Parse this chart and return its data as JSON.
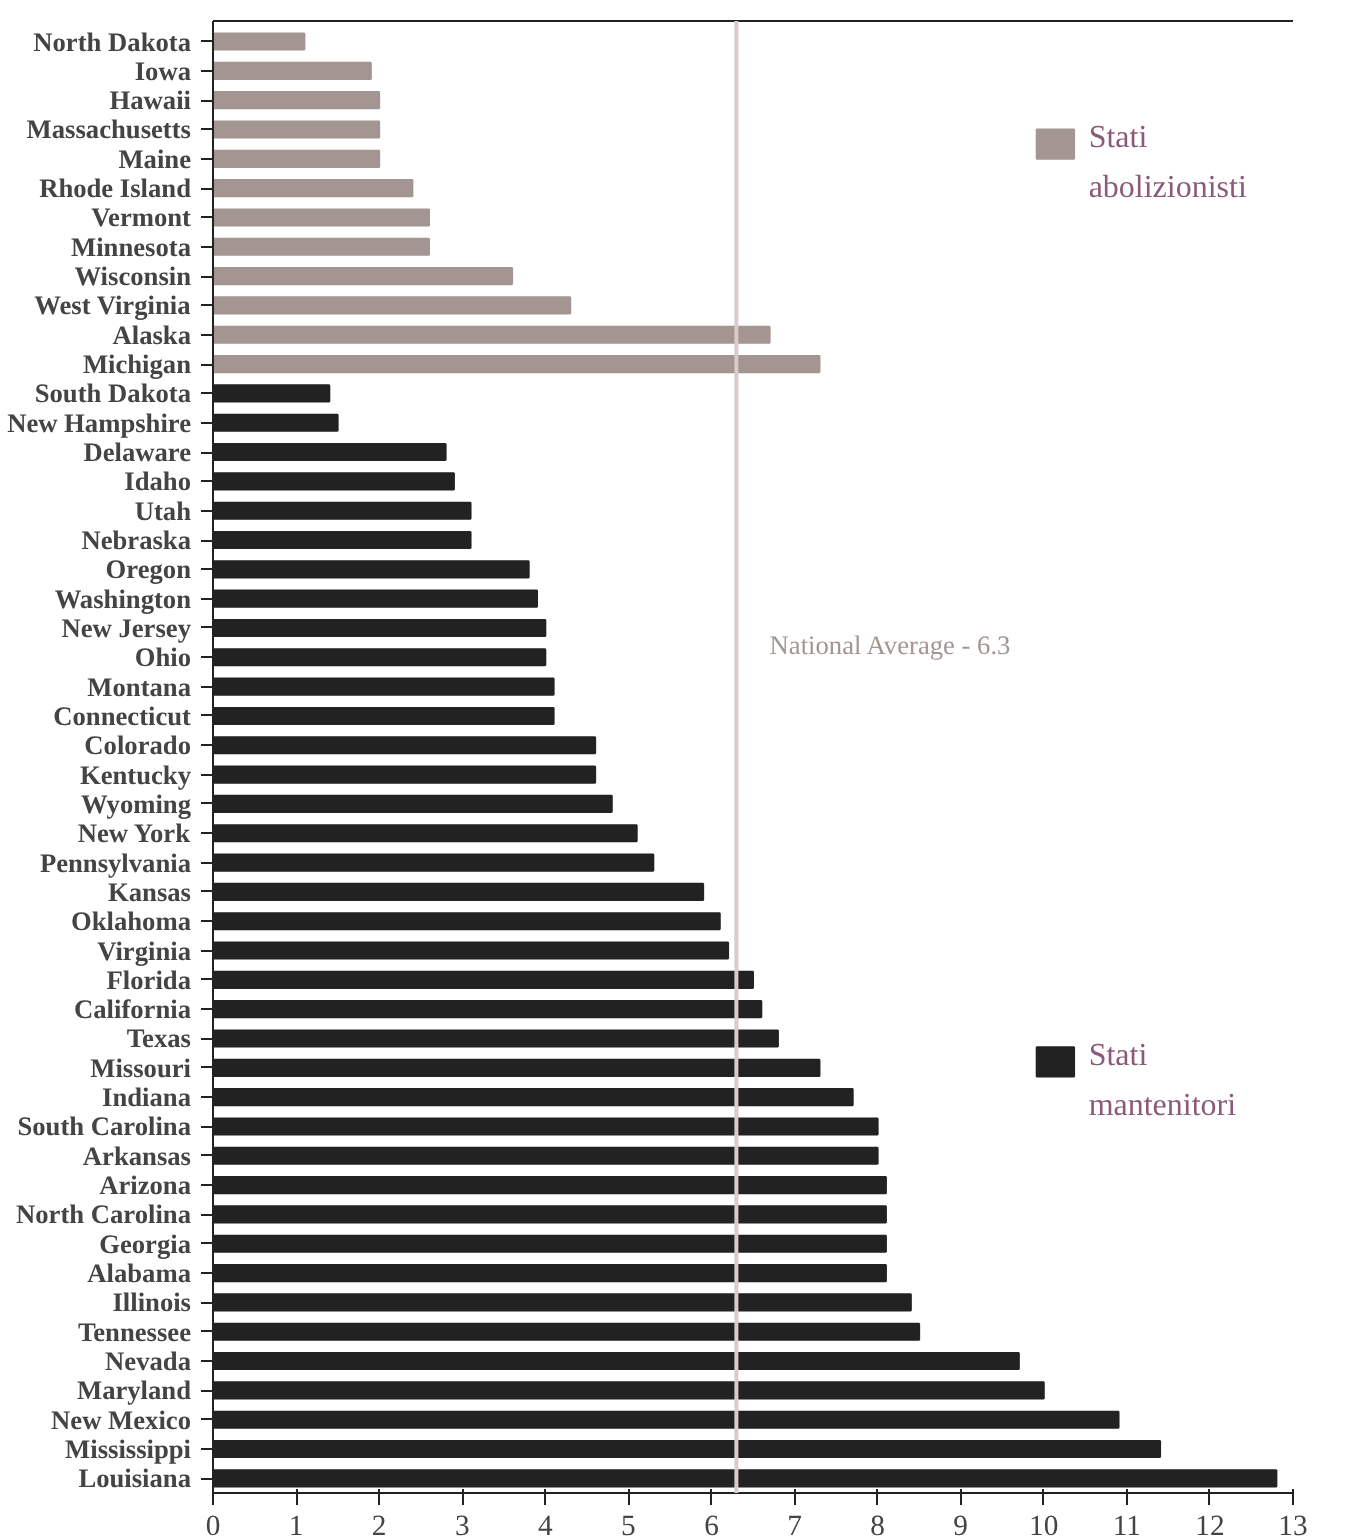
{
  "chart_data": {
    "type": "bar",
    "orientation": "horizontal",
    "categories": [
      "North Dakota",
      "Iowa",
      "Hawaii",
      "Massachusetts",
      "Maine",
      "Rhode Island",
      "Vermont",
      "Minnesota",
      "Wisconsin",
      "West Virginia",
      "Alaska",
      "Michigan",
      "South Dakota",
      "New Hampshire",
      "Delaware",
      "Idaho",
      "Utah",
      "Nebraska",
      "Oregon",
      "Washington",
      "New Jersey",
      "Ohio",
      "Montana",
      "Connecticut",
      "Colorado",
      "Kentucky",
      "Wyoming",
      "New York",
      "Pennsylvania",
      "Kansas",
      "Oklahoma",
      "Virginia",
      "Florida",
      "California",
      "Texas",
      "Missouri",
      "Indiana",
      "South Carolina",
      "Arkansas",
      "Arizona",
      "North Carolina",
      "Georgia",
      "Alabama",
      "Illinois",
      "Tennessee",
      "Nevada",
      "Maryland",
      "New Mexico",
      "Mississippi",
      "Louisiana"
    ],
    "series": [
      {
        "name": "Stati abolizionisti",
        "color": "#a39592",
        "values": [
          1.1,
          1.9,
          2.0,
          2.0,
          2.0,
          2.4,
          2.6,
          2.6,
          3.6,
          4.3,
          6.7,
          7.3,
          null,
          null,
          null,
          null,
          null,
          null,
          null,
          null,
          null,
          null,
          null,
          null,
          null,
          null,
          null,
          null,
          null,
          null,
          null,
          null,
          null,
          null,
          null,
          null,
          null,
          null,
          null,
          null,
          null,
          null,
          null,
          null,
          null,
          null,
          null,
          null,
          null,
          null
        ]
      },
      {
        "name": "Stati mantenitori",
        "color": "#222222",
        "values": [
          null,
          null,
          null,
          null,
          null,
          null,
          null,
          null,
          null,
          null,
          null,
          null,
          1.4,
          1.5,
          2.8,
          2.9,
          3.1,
          3.1,
          3.8,
          3.9,
          4.0,
          4.0,
          4.1,
          4.1,
          4.6,
          4.6,
          4.8,
          5.1,
          5.3,
          5.9,
          6.1,
          6.2,
          6.5,
          6.6,
          6.8,
          7.3,
          7.7,
          8.0,
          8.0,
          8.1,
          8.1,
          8.1,
          8.1,
          8.4,
          8.5,
          9.7,
          10.0,
          10.9,
          11.4,
          12.8
        ]
      }
    ],
    "xlim": [
      0,
      13
    ],
    "xticks": [
      0,
      1,
      2,
      3,
      4,
      5,
      6,
      7,
      8,
      9,
      10,
      11,
      12,
      13
    ],
    "ref_lines": [
      {
        "axis": "x",
        "value": 6.3,
        "label": "National Average - 6.3",
        "color": "#d8ccc8"
      }
    ],
    "grid": false,
    "legend": "right"
  }
}
